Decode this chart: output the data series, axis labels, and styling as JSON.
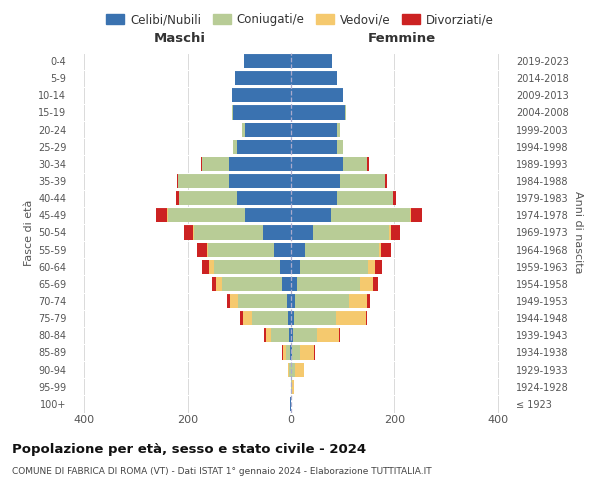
{
  "age_groups": [
    "100+",
    "95-99",
    "90-94",
    "85-89",
    "80-84",
    "75-79",
    "70-74",
    "65-69",
    "60-64",
    "55-59",
    "50-54",
    "45-49",
    "40-44",
    "35-39",
    "30-34",
    "25-29",
    "20-24",
    "15-19",
    "10-14",
    "5-9",
    "0-4"
  ],
  "birth_years": [
    "≤ 1923",
    "1924-1928",
    "1929-1933",
    "1934-1938",
    "1939-1943",
    "1944-1948",
    "1949-1953",
    "1954-1958",
    "1959-1963",
    "1964-1968",
    "1969-1973",
    "1974-1978",
    "1979-1983",
    "1984-1988",
    "1989-1993",
    "1994-1998",
    "1999-2003",
    "2004-2008",
    "2009-2013",
    "2014-2018",
    "2019-2023"
  ],
  "maschi": {
    "celibi": [
      1,
      0,
      0,
      2,
      3,
      5,
      8,
      18,
      22,
      32,
      55,
      90,
      105,
      120,
      120,
      105,
      90,
      112,
      115,
      108,
      92
    ],
    "coniugati": [
      0,
      0,
      3,
      8,
      35,
      70,
      95,
      115,
      128,
      128,
      132,
      148,
      112,
      98,
      52,
      8,
      5,
      2,
      0,
      0,
      0
    ],
    "vedovi": [
      0,
      0,
      2,
      5,
      10,
      18,
      15,
      12,
      8,
      3,
      2,
      2,
      0,
      0,
      0,
      0,
      0,
      0,
      0,
      0,
      0
    ],
    "divorziati": [
      0,
      0,
      0,
      2,
      4,
      6,
      5,
      8,
      15,
      20,
      18,
      22,
      5,
      3,
      3,
      0,
      0,
      0,
      0,
      0,
      0
    ]
  },
  "femmine": {
    "nubili": [
      0,
      0,
      0,
      2,
      3,
      5,
      8,
      12,
      18,
      28,
      42,
      78,
      90,
      95,
      100,
      90,
      90,
      105,
      100,
      90,
      80
    ],
    "coniugate": [
      0,
      2,
      8,
      15,
      48,
      82,
      105,
      122,
      132,
      142,
      148,
      152,
      108,
      88,
      48,
      10,
      5,
      2,
      0,
      0,
      0
    ],
    "vedove": [
      0,
      4,
      18,
      28,
      42,
      58,
      35,
      25,
      12,
      5,
      3,
      2,
      0,
      0,
      0,
      0,
      0,
      0,
      0,
      0,
      0
    ],
    "divorziate": [
      0,
      0,
      0,
      1,
      2,
      3,
      5,
      10,
      15,
      18,
      18,
      22,
      5,
      3,
      3,
      0,
      0,
      0,
      0,
      0,
      0
    ]
  },
  "colors": {
    "celibi_nubili": "#3a72b0",
    "coniugati": "#b8cc96",
    "vedovi": "#f5c96e",
    "divorziati": "#cc2222"
  },
  "xlim": 430,
  "title": "Popolazione per età, sesso e stato civile - 2024",
  "subtitle": "COMUNE DI FABRICA DI ROMA (VT) - Dati ISTAT 1° gennaio 2024 - Elaborazione TUTTITALIA.IT",
  "ylabel_left": "Fasce di età",
  "ylabel_right": "Anni di nascita",
  "xlabel_left": "Maschi",
  "xlabel_right": "Femmine",
  "legend_labels": [
    "Celibi/Nubili",
    "Coniugati/e",
    "Vedovi/e",
    "Divorziati/e"
  ]
}
